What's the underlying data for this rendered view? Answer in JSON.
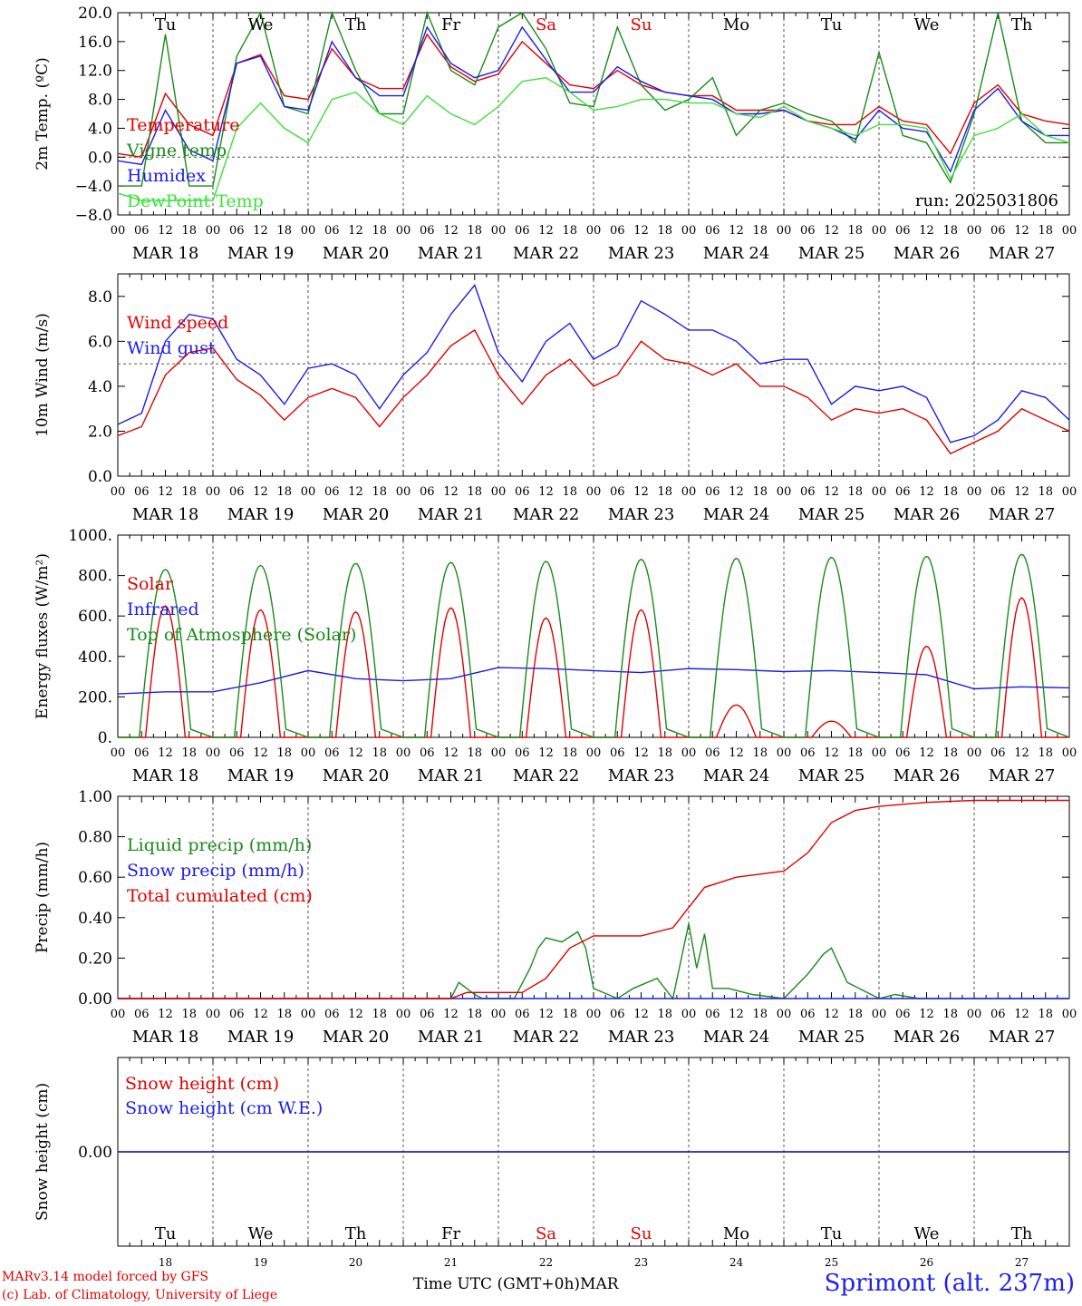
{
  "chart_data": {
    "type": "line",
    "run": "run: 2025031806",
    "hours_per_day": 24,
    "day_count": 10,
    "weekday_labels": [
      "Tu",
      "We",
      "Th",
      "Fr",
      "Sa",
      "Su",
      "Mo",
      "Tu",
      "We",
      "Th"
    ],
    "weekend_flags": [
      false,
      false,
      false,
      false,
      true,
      true,
      false,
      false,
      false,
      false
    ],
    "date_labels": [
      "MAR 18",
      "MAR 19",
      "MAR 20",
      "MAR 21",
      "MAR 22",
      "MAR 23",
      "MAR 24",
      "MAR 25",
      "MAR 26",
      "MAR 27"
    ],
    "day_numbers": [
      "18",
      "19",
      "20",
      "21",
      "22",
      "23",
      "24",
      "25",
      "26",
      "27"
    ],
    "hour_ticks": [
      "00",
      "06",
      "12",
      "18"
    ],
    "end_tick": "00",
    "colors": {
      "red": "#e00000",
      "green": "#1a8a1a",
      "blue": "#1c1ce8",
      "lightgreen": "#3ce03c",
      "weekend": "#e00000",
      "grid": "#555555"
    },
    "panels": [
      {
        "id": "temperature",
        "ylabel": "2m Temp. (ºC)",
        "ylim": [
          -8,
          20
        ],
        "ticks": [
          "−8.0",
          "−4.0",
          "0.0",
          "4.0",
          "8.0",
          "12.0",
          "16.0",
          "20.0"
        ],
        "tick_values": [
          -8,
          -4,
          0,
          4,
          8,
          12,
          16,
          20
        ],
        "refline": 0,
        "show_weekdays_top": true,
        "series": [
          {
            "name": "Temperature",
            "color": "red",
            "x": [
              0,
              6,
              12,
              18,
              24,
              30,
              36,
              42,
              48,
              54,
              60,
              66,
              72,
              78,
              84,
              90,
              96,
              102,
              108,
              114,
              120,
              126,
              132,
              138,
              144,
              150,
              156,
              162,
              168,
              174,
              180,
              186,
              192,
              198,
              204,
              210,
              216,
              222,
              228,
              234,
              240
            ],
            "y": [
              0.5,
              0,
              8.8,
              4.5,
              3,
              13,
              14.2,
              8.5,
              8,
              15,
              11,
              9.5,
              9.5,
              17,
              12.5,
              10.5,
              11.5,
              16,
              13,
              10,
              9.5,
              12,
              10,
              9,
              8.5,
              8.5,
              6.5,
              6.5,
              6.5,
              5,
              4.5,
              4.5,
              7,
              5,
              4.5,
              0.5,
              7.5,
              10,
              6,
              5,
              4.5
            ]
          },
          {
            "name": "Vigne temp",
            "color": "green",
            "x": [
              0,
              6,
              12,
              18,
              24,
              30,
              36,
              42,
              48,
              54,
              60,
              66,
              72,
              78,
              84,
              90,
              96,
              102,
              108,
              114,
              120,
              126,
              132,
              138,
              144,
              150,
              156,
              162,
              168,
              174,
              180,
              186,
              192,
              198,
              204,
              210,
              216,
              222,
              228,
              234,
              240
            ],
            "y": [
              -4,
              -4,
              17,
              -4,
              -4,
              14,
              20,
              7,
              6,
              20,
              12,
              6,
              6,
              20,
              12,
              10,
              18,
              20,
              15,
              7.5,
              7,
              18,
              10,
              6.5,
              8,
              11,
              3,
              6.5,
              7.5,
              6,
              5,
              2,
              14.5,
              3,
              2,
              -3.5,
              6,
              20,
              5,
              2,
              2
            ]
          },
          {
            "name": "Humidex",
            "color": "blue",
            "x": [
              0,
              6,
              12,
              18,
              24,
              30,
              36,
              42,
              48,
              54,
              60,
              66,
              72,
              78,
              84,
              90,
              96,
              102,
              108,
              114,
              120,
              126,
              132,
              138,
              144,
              150,
              156,
              162,
              168,
              174,
              180,
              186,
              192,
              198,
              204,
              210,
              216,
              222,
              228,
              234,
              240
            ],
            "y": [
              -0.5,
              -1,
              6.5,
              1,
              -0.5,
              13,
              14,
              7,
              6.5,
              16,
              11,
              8.5,
              8.5,
              18,
              13,
              11,
              12,
              18,
              13.5,
              9,
              9,
              12.5,
              10.5,
              9,
              8.5,
              8,
              6,
              6,
              6.5,
              5,
              4,
              2.5,
              6.5,
              4,
              3.5,
              -2,
              6.5,
              9.5,
              5,
              3,
              3
            ]
          },
          {
            "name": "DewPoint Temp",
            "color": "lightgreen",
            "x": [
              0,
              6,
              12,
              18,
              24,
              30,
              36,
              42,
              48,
              54,
              60,
              66,
              72,
              78,
              84,
              90,
              96,
              102,
              108,
              114,
              120,
              126,
              132,
              138,
              144,
              150,
              156,
              162,
              168,
              174,
              180,
              186,
              192,
              198,
              204,
              210,
              216,
              222,
              228,
              234,
              240
            ],
            "y": [
              -5,
              -6,
              -6,
              -6,
              -6,
              4,
              7.5,
              4,
              2,
              8,
              9,
              6,
              4.5,
              8.5,
              6,
              4.5,
              7,
              10.5,
              11,
              9,
              6.5,
              7,
              8,
              8,
              7.5,
              7.5,
              6,
              5.5,
              7,
              5,
              4,
              3,
              4.5,
              4.5,
              4,
              -3,
              3,
              4,
              6,
              3,
              2
            ]
          }
        ],
        "legend": [
          "Temperature",
          "Vigne temp",
          "Humidex",
          "DewPoint Temp"
        ]
      },
      {
        "id": "wind",
        "ylabel": "10m Wind (m/s)",
        "ylim": [
          0,
          9
        ],
        "ticks": [
          "0.0",
          "2.0",
          "4.0",
          "6.0",
          "8.0"
        ],
        "tick_values": [
          0,
          2,
          4,
          6,
          8
        ],
        "refline": 5,
        "series": [
          {
            "name": "Wind speed",
            "color": "red",
            "x": [
              0,
              6,
              12,
              18,
              24,
              30,
              36,
              42,
              48,
              54,
              60,
              66,
              72,
              78,
              84,
              90,
              96,
              102,
              108,
              114,
              120,
              126,
              132,
              138,
              144,
              150,
              156,
              162,
              168,
              174,
              180,
              186,
              192,
              198,
              204,
              210,
              216,
              222,
              228,
              234,
              240
            ],
            "y": [
              1.8,
              2.2,
              4.5,
              5.5,
              5.7,
              4.3,
              3.6,
              2.5,
              3.5,
              3.9,
              3.5,
              2.2,
              3.5,
              4.5,
              5.8,
              6.5,
              4.5,
              3.2,
              4.5,
              5.2,
              4,
              4.5,
              6,
              5.2,
              5,
              4.5,
              5,
              4,
              4,
              3.5,
              2.5,
              3,
              2.8,
              3,
              2.5,
              1,
              1.5,
              2,
              3,
              2.5,
              2
            ]
          },
          {
            "name": "Wind gust",
            "color": "blue",
            "x": [
              0,
              6,
              12,
              18,
              24,
              30,
              36,
              42,
              48,
              54,
              60,
              66,
              72,
              78,
              84,
              90,
              96,
              102,
              108,
              114,
              120,
              126,
              132,
              138,
              144,
              150,
              156,
              162,
              168,
              174,
              180,
              186,
              192,
              198,
              204,
              210,
              216,
              222,
              228,
              234,
              240
            ],
            "y": [
              2.3,
              2.8,
              6,
              7.2,
              7,
              5.2,
              4.5,
              3.2,
              4.8,
              5,
              4.5,
              3,
              4.5,
              5.5,
              7.2,
              8.5,
              5.5,
              4.2,
              6,
              6.8,
              5.2,
              5.8,
              7.8,
              7.2,
              6.5,
              6.5,
              6,
              5,
              5.2,
              5.2,
              3.2,
              4,
              3.8,
              4,
              3.5,
              1.5,
              1.8,
              2.5,
              3.8,
              3.5,
              2.5
            ]
          }
        ],
        "legend": [
          "Wind speed",
          "Wind gust"
        ]
      },
      {
        "id": "energy",
        "ylabel": "Energy fluxes (W/m²)",
        "ylim": [
          0,
          1000
        ],
        "ticks": [
          "0.",
          "200.",
          "400.",
          "600.",
          "800.",
          "1000."
        ],
        "tick_values": [
          0,
          200,
          400,
          600,
          800,
          1000
        ],
        "series": [
          {
            "name": "Solar",
            "color": "red",
            "peaks": [
              650,
              630,
              620,
              640,
              590,
              630,
              160,
              80,
              450,
              690
            ],
            "shape": "diurnal"
          },
          {
            "name": "Infrared",
            "color": "blue",
            "x": [
              0,
              12,
              24,
              36,
              48,
              60,
              72,
              84,
              96,
              108,
              120,
              132,
              144,
              156,
              168,
              180,
              192,
              204,
              216,
              228,
              240
            ],
            "y": [
              215,
              225,
              225,
              270,
              330,
              290,
              280,
              290,
              345,
              340,
              330,
              320,
              340,
              335,
              325,
              330,
              320,
              310,
              240,
              250,
              245
            ]
          },
          {
            "name": "Top of Atmosphere (Solar)",
            "color": "green",
            "peaks": [
              830,
              850,
              860,
              865,
              870,
              880,
              885,
              890,
              895,
              905
            ],
            "shape": "toa"
          }
        ],
        "legend": [
          "Solar",
          "Infrared",
          "Top of Atmosphere (Solar)"
        ]
      },
      {
        "id": "precip",
        "ylabel": "Precip (mm/h)",
        "ylim": [
          0,
          1.0
        ],
        "ticks": [
          "0.00",
          "0.20",
          "0.40",
          "0.60",
          "0.80",
          "1.00"
        ],
        "tick_values": [
          0,
          0.2,
          0.4,
          0.6,
          0.8,
          1.0
        ],
        "series": [
          {
            "name": "Liquid precip (mm/h)",
            "color": "green",
            "x": [
              0,
              84,
              86,
              88,
              90,
              92,
              96,
              100,
              104,
              106,
              108,
              112,
              116,
              118,
              120,
              126,
              130,
              136,
              140,
              144,
              146,
              148,
              150,
              154,
              160,
              168,
              174,
              178,
              180,
              184,
              190,
              192,
              196,
              202,
              240
            ],
            "y": [
              0,
              0,
              0.08,
              0.05,
              0.02,
              0,
              0,
              0,
              0.15,
              0.25,
              0.3,
              0.28,
              0.33,
              0.25,
              0.05,
              0,
              0.05,
              0.1,
              0,
              0.37,
              0.15,
              0.32,
              0.05,
              0.05,
              0.02,
              0,
              0.12,
              0.22,
              0.25,
              0.08,
              0.02,
              0,
              0.02,
              0,
              0
            ]
          },
          {
            "name": "Snow precip (mm/h)",
            "color": "blue",
            "x": [
              0,
              240
            ],
            "y": [
              0,
              0
            ]
          },
          {
            "name": "Total cumulated (cm)",
            "color": "red",
            "x": [
              0,
              84,
              88,
              102,
              108,
              114,
              120,
              132,
              140,
              144,
              148,
              156,
              168,
              174,
              180,
              186,
              192,
              204,
              216,
              240
            ],
            "y": [
              0,
              0,
              0.03,
              0.03,
              0.1,
              0.25,
              0.31,
              0.31,
              0.35,
              0.45,
              0.55,
              0.6,
              0.63,
              0.72,
              0.87,
              0.93,
              0.95,
              0.97,
              0.98,
              0.98
            ]
          }
        ],
        "legend": [
          "Liquid precip (mm/h)",
          "Snow precip (mm/h)",
          "Total cumulated (cm)"
        ]
      },
      {
        "id": "snow",
        "ylabel": "Snow height (cm)",
        "ylim": [
          -1,
          1
        ],
        "ticks": [
          "0.00"
        ],
        "tick_values": [
          0
        ],
        "show_weekdays_bottom": true,
        "series": [
          {
            "name": "Snow height (cm)",
            "color": "red",
            "x": [
              0,
              240
            ],
            "y": [
              0,
              0
            ]
          },
          {
            "name": "Snow height (cm W.E.)",
            "color": "blue",
            "x": [
              0,
              240
            ],
            "y": [
              0,
              0
            ]
          }
        ],
        "legend": [
          "Snow height (cm)",
          "Snow height (cm W.E.)"
        ]
      }
    ]
  },
  "footer": {
    "credit_line1": "MARv3.14 model forced by GFS",
    "credit_line2": "(c) Lab. of Climatology, University of Liege",
    "time_axis": "Time UTC (GMT+0h)MAR",
    "station": "Sprimont (alt. 237m)"
  }
}
